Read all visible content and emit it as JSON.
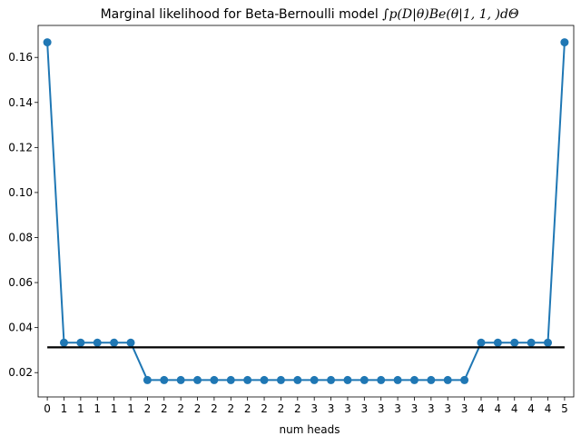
{
  "chart_data": {
    "type": "line",
    "title_prefix": "Marginal likelihood for Beta-Bernoulli model ",
    "title_math": "∫p(D|θ)Be(θ|1, 1, )dΘ",
    "xlabel": "num heads",
    "ylabel": "",
    "x": [
      0,
      1,
      2,
      3,
      4,
      5,
      6,
      7,
      8,
      9,
      10,
      11,
      12,
      13,
      14,
      15,
      16,
      17,
      18,
      19,
      20,
      21,
      22,
      23,
      24,
      25,
      26,
      27,
      28,
      29,
      30,
      31
    ],
    "x_tick_labels": [
      "0",
      "1",
      "1",
      "1",
      "1",
      "1",
      "2",
      "2",
      "2",
      "2",
      "2",
      "2",
      "2",
      "2",
      "2",
      "2",
      "3",
      "3",
      "3",
      "3",
      "3",
      "3",
      "3",
      "3",
      "3",
      "3",
      "4",
      "4",
      "4",
      "4",
      "4",
      "5"
    ],
    "series": [
      {
        "color": "#1f77b4",
        "marker": "circle",
        "values": [
          0.1667,
          0.0333,
          0.0333,
          0.0333,
          0.0333,
          0.0333,
          0.0167,
          0.0167,
          0.0167,
          0.0167,
          0.0167,
          0.0167,
          0.0167,
          0.0167,
          0.0167,
          0.0167,
          0.0167,
          0.0167,
          0.0167,
          0.0167,
          0.0167,
          0.0167,
          0.0167,
          0.0167,
          0.0167,
          0.0167,
          0.0333,
          0.0333,
          0.0333,
          0.0333,
          0.0333,
          0.1667
        ]
      }
    ],
    "hline": {
      "value": 0.03125,
      "color": "#000000"
    },
    "xlim": [
      -0.55,
      31.55
    ],
    "ylim": [
      0.0092,
      0.1742
    ],
    "y_ticks": [
      0.02,
      0.04,
      0.06,
      0.08,
      0.1,
      0.12,
      0.14,
      0.16
    ],
    "y_tick_labels": [
      "0.02",
      "0.04",
      "0.06",
      "0.08",
      "0.10",
      "0.12",
      "0.14",
      "0.16"
    ],
    "grid": false,
    "legend": "none"
  }
}
